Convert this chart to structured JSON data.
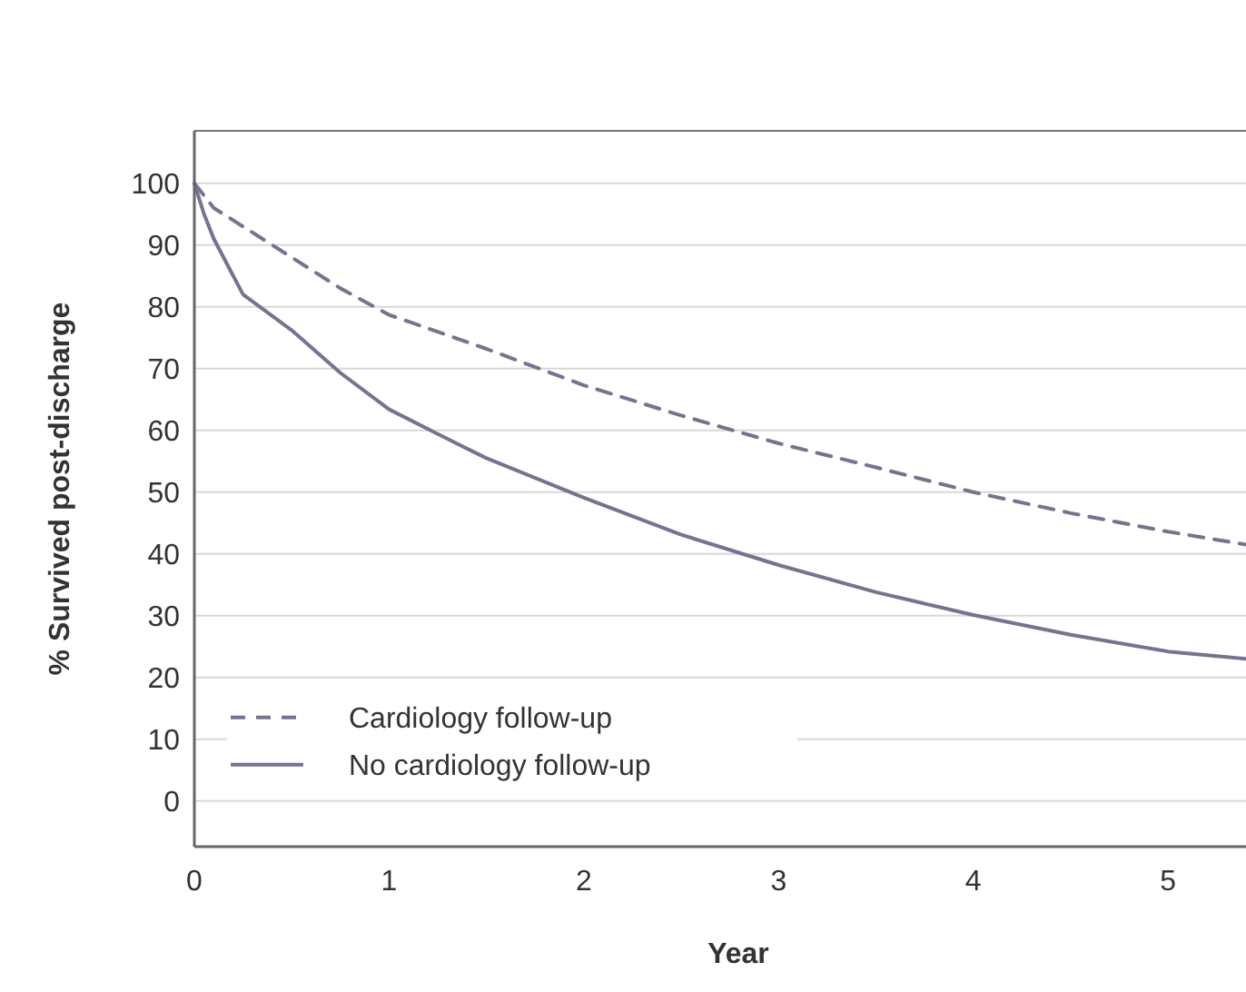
{
  "chart_data": {
    "type": "line",
    "xlabel": "Year",
    "ylabel": "% Survived post-discharge",
    "xlim": [
      0,
      5.4
    ],
    "ylim": [
      -7.4,
      108.5
    ],
    "xticks": [
      0,
      1,
      2,
      3,
      4,
      5
    ],
    "yticks": [
      0,
      10,
      20,
      30,
      40,
      50,
      60,
      70,
      80,
      90,
      100
    ],
    "grid": "y",
    "legend": "bottom left",
    "marker": "none",
    "series": [
      {
        "name": "Cardiology follow-up",
        "color": "#7a7191",
        "line_style": "dashed",
        "x": [
          0,
          0.1,
          0.25,
          0.5,
          0.75,
          1,
          1.5,
          2,
          2.5,
          3,
          3.5,
          4,
          4.5,
          5,
          5.4
        ],
        "values": [
          100,
          96,
          93,
          88,
          83,
          78.7,
          73.2,
          67.3,
          62.4,
          57.9,
          54,
          50,
          46.6,
          43.6,
          41.5
        ]
      },
      {
        "name": "No cardiology follow-up",
        "color": "#7a7191",
        "line_style": "solid",
        "x": [
          0,
          0.05,
          0.1,
          0.25,
          0.5,
          0.75,
          1,
          1.25,
          1.5,
          2,
          2.5,
          3,
          3.5,
          4,
          4.5,
          5,
          5.4
        ],
        "values": [
          100,
          95,
          91,
          82,
          76.2,
          69.3,
          63.4,
          59.4,
          55.5,
          49.1,
          43.1,
          38.2,
          33.8,
          30.1,
          26.9,
          24.2,
          23
        ]
      }
    ]
  }
}
